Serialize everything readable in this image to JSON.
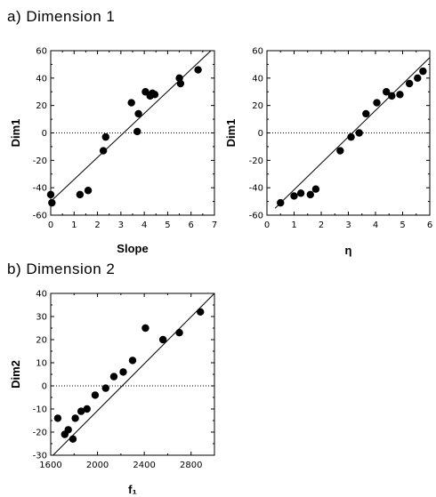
{
  "headings": {
    "a": "a) Dimension 1",
    "b": "b) Dimension 2"
  },
  "chart_data": [
    {
      "type": "scatter",
      "title": "",
      "xlabel": "Slope",
      "ylabel": "Dim1",
      "xlim": [
        0,
        7
      ],
      "ylim": [
        -60,
        60
      ],
      "xticks": [
        "0",
        "1",
        "2",
        "3",
        "4",
        "5",
        "6",
        "7"
      ],
      "yticks": [
        "-60",
        "-40",
        "-20",
        "0",
        "20",
        "40",
        "60"
      ],
      "zero_line": true,
      "fit_line": {
        "x": [
          0.0,
          6.85
        ],
        "y": [
          -50,
          60
        ]
      },
      "points": {
        "x": [
          0.0,
          0.05,
          1.25,
          1.6,
          2.25,
          2.35,
          3.45,
          3.7,
          3.75,
          4.05,
          4.25,
          4.35,
          4.45,
          5.5,
          5.55,
          6.3
        ],
        "y": [
          -45,
          -51,
          -45,
          -42,
          -13,
          -3,
          22,
          1,
          14,
          30,
          27,
          29,
          28,
          40,
          36,
          46
        ]
      }
    },
    {
      "type": "scatter",
      "title": "",
      "xlabel": "η",
      "ylabel": "Dim1",
      "xlim": [
        0,
        6
      ],
      "ylim": [
        -60,
        60
      ],
      "xticks": [
        "0",
        "1",
        "2",
        "3",
        "4",
        "5",
        "6"
      ],
      "yticks": [
        "-60",
        "-40",
        "-20",
        "0",
        "20",
        "40",
        "60"
      ],
      "zero_line": true,
      "fit_line": {
        "x": [
          0.3,
          6.0
        ],
        "y": [
          -55,
          55
        ]
      },
      "points": {
        "x": [
          0.5,
          1.0,
          1.25,
          1.6,
          1.8,
          2.7,
          3.1,
          3.4,
          3.65,
          4.05,
          4.4,
          4.6,
          4.9,
          5.25,
          5.55,
          5.75
        ],
        "y": [
          -51,
          -46,
          -44,
          -45,
          -41,
          -13,
          -3,
          0,
          14,
          22,
          30,
          27,
          28,
          36,
          40,
          45
        ]
      }
    },
    {
      "type": "scatter",
      "title": "",
      "xlabel": "f₁",
      "ylabel": "Dim2",
      "xlim": [
        1600,
        3000
      ],
      "ylim": [
        -30,
        40
      ],
      "xticks": [
        "1600",
        "2000",
        "2400",
        "2800"
      ],
      "yticks": [
        "-30",
        "-20",
        "-10",
        "0",
        "10",
        "20",
        "30",
        "40"
      ],
      "zero_line": true,
      "fit_line": {
        "x": [
          1620,
          3000
        ],
        "y": [
          -30,
          40
        ]
      },
      "points": {
        "x": [
          1660,
          1720,
          1750,
          1790,
          1810,
          1860,
          1910,
          1980,
          2070,
          2140,
          2220,
          2300,
          2410,
          2560,
          2700,
          2880
        ],
        "y": [
          -14,
          -21,
          -19,
          -23,
          -14,
          -11,
          -10,
          -4,
          -1,
          4,
          6,
          11,
          25,
          20,
          23,
          32
        ]
      }
    }
  ]
}
